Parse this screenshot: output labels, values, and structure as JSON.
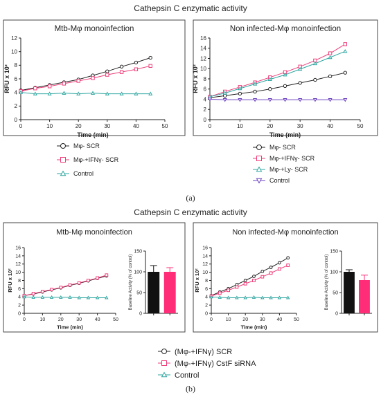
{
  "panel_a": {
    "title": "Cathepsin C enzymatic activity",
    "label": "(a)",
    "legend_left": [
      {
        "label": "Mφ- SCR",
        "color": "#222222",
        "marker": "circle"
      },
      {
        "label": "Mφ-+IFNγ- SCR",
        "color": "#ee3d7a",
        "marker": "square"
      },
      {
        "label": "Control",
        "color": "#2ea6a0",
        "marker": "triangle-up"
      }
    ],
    "legend_right": [
      {
        "label": "Mφ- SCR",
        "color": "#222222",
        "marker": "circle"
      },
      {
        "label": "Mφ-+IFNγ- SCR",
        "color": "#ee3d7a",
        "marker": "square"
      },
      {
        "label": "Mφ-+Ly- SCR",
        "color": "#2ea6a0",
        "marker": "triangle-up"
      },
      {
        "label": "Control",
        "color": "#6a3fc0",
        "marker": "triangle-down"
      }
    ]
  },
  "panel_b": {
    "title": "Cathepsin C enzymatic activity",
    "label": "(b)",
    "legend": [
      {
        "label": "(Mφ-+IFNγ) SCR",
        "color": "#222222",
        "marker": "circle"
      },
      {
        "label": "(Mφ-+IFNγ) CstF siRNA",
        "color": "#ee3d7a",
        "marker": "square"
      },
      {
        "label": "Control",
        "color": "#2ea6a0",
        "marker": "triangle-up"
      }
    ]
  },
  "chart_data": [
    {
      "id": "a-left",
      "type": "line",
      "title": "Mtb-Mφ monoinfection",
      "xlabel": "Time (min)",
      "ylabel": "RFU x 10²",
      "xlim": [
        0,
        50
      ],
      "ylim": [
        0,
        12
      ],
      "xticks": [
        0,
        10,
        20,
        30,
        40,
        50
      ],
      "yticks": [
        0,
        2,
        4,
        6,
        8,
        10,
        12
      ],
      "x": [
        0,
        5,
        10,
        15,
        20,
        25,
        30,
        35,
        40,
        45
      ],
      "series": [
        {
          "name": "Mφ- SCR",
          "color": "#222222",
          "marker": "circle",
          "values": [
            4.3,
            4.7,
            5.1,
            5.5,
            5.9,
            6.5,
            7.1,
            7.8,
            8.4,
            9.1
          ]
        },
        {
          "name": "Mφ-+IFNγ- SCR",
          "color": "#ee3d7a",
          "marker": "square",
          "values": [
            4.2,
            4.6,
            4.9,
            5.3,
            5.7,
            6.1,
            6.6,
            7.0,
            7.4,
            7.9
          ]
        },
        {
          "name": "Control",
          "color": "#2ea6a0",
          "marker": "triangle-up",
          "values": [
            4.0,
            3.8,
            3.8,
            3.9,
            3.8,
            3.9,
            3.8,
            3.8,
            3.8,
            3.8
          ]
        }
      ]
    },
    {
      "id": "a-right",
      "type": "line",
      "title": "Non infected-Mφ monoinfection",
      "xlabel": "Time (min)",
      "ylabel": "RFU x 10²",
      "xlim": [
        0,
        50
      ],
      "ylim": [
        0,
        16
      ],
      "xticks": [
        0,
        10,
        20,
        30,
        40,
        50
      ],
      "yticks": [
        0,
        2,
        4,
        6,
        8,
        10,
        12,
        14,
        16
      ],
      "x": [
        0,
        5,
        10,
        15,
        20,
        25,
        30,
        35,
        40,
        45
      ],
      "series": [
        {
          "name": "Mφ- SCR",
          "color": "#222222",
          "marker": "circle",
          "values": [
            4.3,
            4.7,
            5.1,
            5.5,
            6.0,
            6.6,
            7.2,
            7.8,
            8.5,
            9.2
          ]
        },
        {
          "name": "Mφ-+IFNγ- SCR",
          "color": "#ee3d7a",
          "marker": "square",
          "values": [
            4.5,
            5.5,
            6.4,
            7.3,
            8.3,
            9.3,
            10.4,
            11.6,
            13.0,
            14.8
          ]
        },
        {
          "name": "Mφ-+Ly- SCR",
          "color": "#2ea6a0",
          "marker": "triangle-up",
          "values": [
            4.5,
            5.2,
            6.1,
            7.0,
            7.9,
            8.8,
            9.9,
            11.0,
            12.2,
            13.4
          ]
        },
        {
          "name": "Control",
          "color": "#6a3fc0",
          "marker": "triangle-down",
          "values": [
            4.0,
            3.9,
            3.9,
            3.9,
            3.9,
            3.9,
            3.9,
            3.9,
            3.9,
            3.9
          ]
        }
      ]
    },
    {
      "id": "b-left-line",
      "type": "line",
      "title": "Mtb-Mφ monoinfection",
      "xlabel": "Time (min)",
      "ylabel": "RFU x 10²",
      "xlim": [
        0,
        50
      ],
      "ylim": [
        0,
        16
      ],
      "xticks": [
        0,
        10,
        20,
        30,
        40,
        50
      ],
      "yticks": [
        0,
        2,
        4,
        6,
        8,
        10,
        12,
        14,
        16
      ],
      "x": [
        0,
        5,
        10,
        15,
        20,
        25,
        30,
        35,
        40,
        45
      ],
      "series": [
        {
          "name": "(Mφ-+IFNγ) SCR",
          "color": "#222222",
          "marker": "circle",
          "values": [
            4.3,
            4.7,
            5.2,
            5.7,
            6.2,
            6.8,
            7.3,
            7.9,
            8.5,
            9.1
          ]
        },
        {
          "name": "(Mφ-+IFNγ) CstF siRNA",
          "color": "#ee3d7a",
          "marker": "square",
          "values": [
            4.3,
            4.8,
            5.3,
            5.8,
            6.3,
            6.9,
            7.4,
            8.0,
            8.6,
            9.3
          ]
        },
        {
          "name": "Control",
          "color": "#2ea6a0",
          "marker": "triangle-up",
          "values": [
            4.0,
            3.9,
            3.9,
            3.9,
            3.9,
            3.9,
            3.8,
            3.8,
            3.8,
            3.8
          ]
        }
      ]
    },
    {
      "id": "b-left-bar",
      "type": "bar",
      "ylabel": "Baseline Activity (% of control)",
      "ylim": [
        0,
        150
      ],
      "yticks": [
        0,
        50,
        100,
        150
      ],
      "categories": [
        "(Mφ-+IFNγ) SCR",
        "(Mφ-+IFNγ) CstF siRNA"
      ],
      "values": [
        100,
        100
      ],
      "errors": [
        15,
        10
      ],
      "colors": [
        "#111111",
        "#ff2d78"
      ]
    },
    {
      "id": "b-right-line",
      "type": "line",
      "title": "Non infected-Mφ monoinfection",
      "xlabel": "Time (min)",
      "ylabel": "RFU x 10²",
      "xlim": [
        0,
        50
      ],
      "ylim": [
        0,
        16
      ],
      "xticks": [
        0,
        10,
        20,
        30,
        40,
        50
      ],
      "yticks": [
        0,
        2,
        4,
        6,
        8,
        10,
        12,
        14,
        16
      ],
      "x": [
        0,
        5,
        10,
        15,
        20,
        25,
        30,
        35,
        40,
        45
      ],
      "series": [
        {
          "name": "(Mφ-+IFNγ) SCR",
          "color": "#222222",
          "marker": "circle",
          "values": [
            4.3,
            5.2,
            6.0,
            7.0,
            8.0,
            9.0,
            10.2,
            11.2,
            12.3,
            13.5
          ]
        },
        {
          "name": "(Mφ-+IFNγ) CstF siRNA",
          "color": "#ee3d7a",
          "marker": "square",
          "values": [
            4.2,
            4.9,
            5.6,
            6.4,
            7.2,
            8.0,
            8.9,
            9.8,
            10.8,
            11.7
          ]
        },
        {
          "name": "Control",
          "color": "#2ea6a0",
          "marker": "triangle-up",
          "values": [
            4.0,
            3.9,
            3.8,
            3.8,
            3.8,
            3.9,
            3.8,
            3.8,
            3.8,
            3.8
          ]
        }
      ]
    },
    {
      "id": "b-right-bar",
      "type": "bar",
      "ylabel": "Baseline Activity (% of control)",
      "ylim": [
        0,
        150
      ],
      "yticks": [
        0,
        50,
        100,
        150
      ],
      "categories": [
        "(Mφ-+IFNγ) SCR",
        "(Mφ-+IFNγ) CstF siRNA"
      ],
      "values": [
        100,
        80
      ],
      "errors": [
        5,
        12
      ],
      "colors": [
        "#111111",
        "#ff2d78"
      ]
    }
  ]
}
